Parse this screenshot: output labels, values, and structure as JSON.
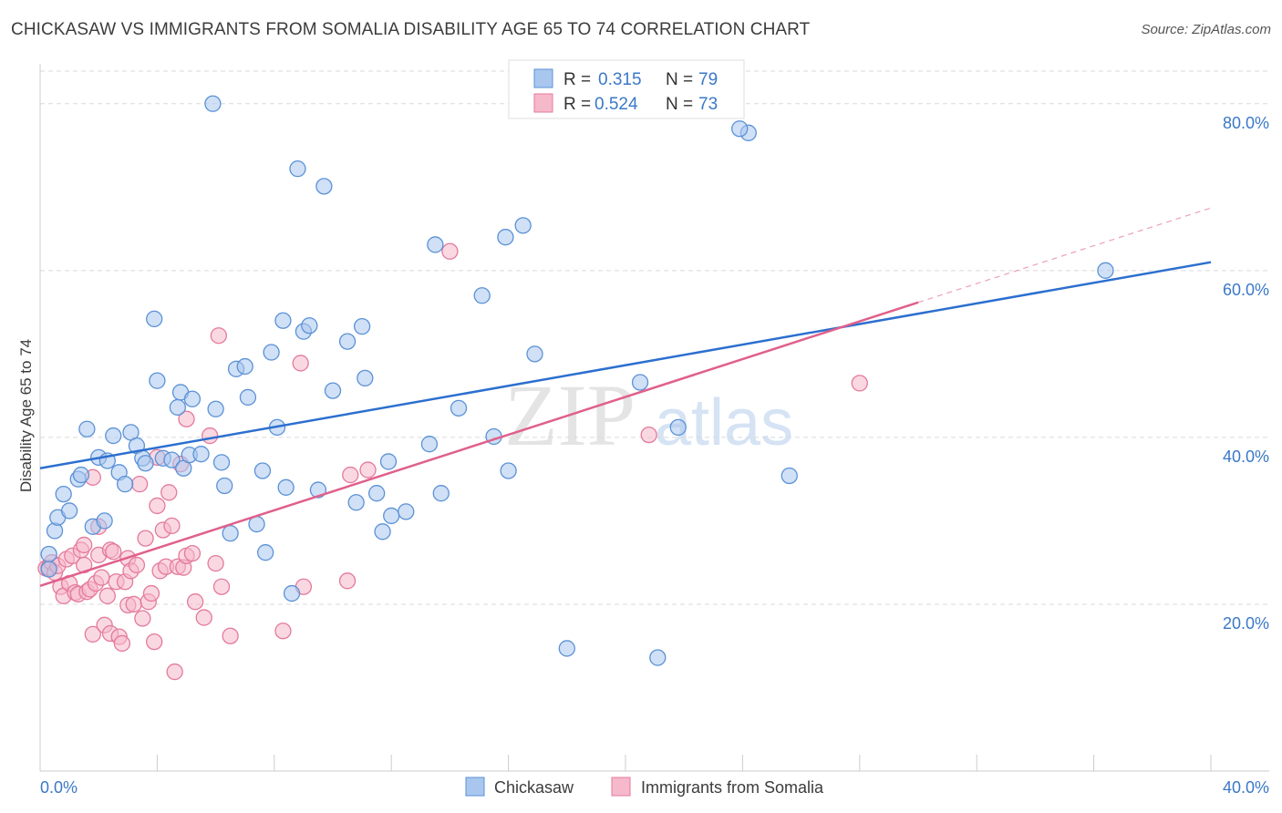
{
  "title": "CHICKASAW VS IMMIGRANTS FROM SOMALIA DISABILITY AGE 65 TO 74 CORRELATION CHART",
  "source": "Source: ZipAtlas.com",
  "watermark": {
    "zip": "ZIP",
    "atlas": "atlas"
  },
  "legend": {
    "r_label": "R =",
    "n_label": "N =",
    "rows": [
      {
        "r": "0.315",
        "n": "79"
      },
      {
        "r": "0.524",
        "n": "73"
      }
    ]
  },
  "colors": {
    "blue_fill": "#a9c7ee",
    "blue_stroke": "#5b92d6",
    "blue_line": "#2c6fcf",
    "pink_fill": "#f6b8cb",
    "pink_stroke": "#e47a9c",
    "pink_line": "#e0608b",
    "grid": "#d9d9d9",
    "value_text": "#3a78c8"
  },
  "chart_data": {
    "type": "scatter",
    "xlabel": "",
    "ylabel": "Disability Age 65 to 74",
    "xlim": [
      0,
      40
    ],
    "ylim": [
      0,
      85
    ],
    "x_tick_labels": [
      "0.0%",
      "40.0%"
    ],
    "y_ticks": [
      20,
      40,
      60,
      80
    ],
    "y_tick_labels": [
      "20.0%",
      "40.0%",
      "60.0%",
      "80.0%"
    ],
    "grid": true,
    "legend_position": "top-center",
    "series": [
      {
        "name": "Chickasaw",
        "trend": {
          "x0": 0,
          "y0": 36.3,
          "x1": 40,
          "y1": 61.0
        },
        "points": [
          [
            0.3,
            26.0
          ],
          [
            0.3,
            24.2
          ],
          [
            0.5,
            28.8
          ],
          [
            0.6,
            30.4
          ],
          [
            0.8,
            33.2
          ],
          [
            1.0,
            31.2
          ],
          [
            1.3,
            35.0
          ],
          [
            1.4,
            35.5
          ],
          [
            1.6,
            41.0
          ],
          [
            1.8,
            29.3
          ],
          [
            2.0,
            37.6
          ],
          [
            2.2,
            30.0
          ],
          [
            2.3,
            37.2
          ],
          [
            2.5,
            40.2
          ],
          [
            2.7,
            35.8
          ],
          [
            2.9,
            34.4
          ],
          [
            3.1,
            40.6
          ],
          [
            3.3,
            39.0
          ],
          [
            3.5,
            37.5
          ],
          [
            3.6,
            36.9
          ],
          [
            3.9,
            54.2
          ],
          [
            4.0,
            46.8
          ],
          [
            4.2,
            37.5
          ],
          [
            4.5,
            37.3
          ],
          [
            4.7,
            43.6
          ],
          [
            4.8,
            45.4
          ],
          [
            4.9,
            36.3
          ],
          [
            5.1,
            37.9
          ],
          [
            5.2,
            44.6
          ],
          [
            5.5,
            38.0
          ],
          [
            6.0,
            43.4
          ],
          [
            6.2,
            37.0
          ],
          [
            6.3,
            34.2
          ],
          [
            6.5,
            28.5
          ],
          [
            6.7,
            48.2
          ],
          [
            7.0,
            48.5
          ],
          [
            7.1,
            44.8
          ],
          [
            7.4,
            29.6
          ],
          [
            7.6,
            36.0
          ],
          [
            7.7,
            26.2
          ],
          [
            7.9,
            50.2
          ],
          [
            8.1,
            41.2
          ],
          [
            8.3,
            54.0
          ],
          [
            8.4,
            34.0
          ],
          [
            8.6,
            21.3
          ],
          [
            8.8,
            72.2
          ],
          [
            9.0,
            52.7
          ],
          [
            9.2,
            53.4
          ],
          [
            9.5,
            33.7
          ],
          [
            9.7,
            70.1
          ],
          [
            10.0,
            45.6
          ],
          [
            10.5,
            51.5
          ],
          [
            10.8,
            32.2
          ],
          [
            11.0,
            53.3
          ],
          [
            11.1,
            47.1
          ],
          [
            11.5,
            33.3
          ],
          [
            11.7,
            28.7
          ],
          [
            11.9,
            37.1
          ],
          [
            12.0,
            30.6
          ],
          [
            12.5,
            31.1
          ],
          [
            13.3,
            39.2
          ],
          [
            13.5,
            63.1
          ],
          [
            13.7,
            33.3
          ],
          [
            14.3,
            43.5
          ],
          [
            15.1,
            57.0
          ],
          [
            15.5,
            40.1
          ],
          [
            15.9,
            64.0
          ],
          [
            16.0,
            36.0
          ],
          [
            16.5,
            65.4
          ],
          [
            16.9,
            50.0
          ],
          [
            18.0,
            14.7
          ],
          [
            20.5,
            46.6
          ],
          [
            21.1,
            13.6
          ],
          [
            21.8,
            41.2
          ],
          [
            25.6,
            35.4
          ],
          [
            36.4,
            60.0
          ],
          [
            5.9,
            80.0
          ],
          [
            24.2,
            76.5
          ],
          [
            23.9,
            77.0
          ]
        ]
      },
      {
        "name": "Immigrants from Somalia",
        "trend": {
          "x0": 0,
          "y0": 22.2,
          "x1": 40,
          "y1": 67.5,
          "solid_until_x": 30.0
        },
        "points": [
          [
            0.2,
            24.3
          ],
          [
            0.3,
            24.4
          ],
          [
            0.4,
            25.0
          ],
          [
            0.5,
            23.8
          ],
          [
            0.6,
            24.6
          ],
          [
            0.7,
            22.1
          ],
          [
            0.8,
            21.0
          ],
          [
            0.9,
            25.4
          ],
          [
            1.0,
            22.5
          ],
          [
            1.1,
            25.8
          ],
          [
            1.2,
            21.4
          ],
          [
            1.3,
            21.2
          ],
          [
            1.4,
            26.5
          ],
          [
            1.5,
            27.1
          ],
          [
            1.5,
            24.7
          ],
          [
            1.6,
            21.5
          ],
          [
            1.7,
            21.8
          ],
          [
            1.8,
            16.4
          ],
          [
            1.8,
            35.2
          ],
          [
            1.9,
            22.5
          ],
          [
            2.0,
            25.9
          ],
          [
            2.0,
            29.3
          ],
          [
            2.1,
            23.2
          ],
          [
            2.2,
            17.5
          ],
          [
            2.3,
            21.0
          ],
          [
            2.4,
            16.5
          ],
          [
            2.4,
            26.5
          ],
          [
            2.5,
            26.3
          ],
          [
            2.6,
            22.7
          ],
          [
            2.7,
            16.1
          ],
          [
            2.8,
            15.3
          ],
          [
            2.9,
            22.7
          ],
          [
            3.0,
            19.9
          ],
          [
            3.0,
            25.5
          ],
          [
            3.1,
            24.0
          ],
          [
            3.2,
            20.0
          ],
          [
            3.3,
            24.7
          ],
          [
            3.4,
            34.4
          ],
          [
            3.5,
            18.3
          ],
          [
            3.6,
            27.9
          ],
          [
            3.7,
            20.3
          ],
          [
            3.8,
            21.3
          ],
          [
            3.9,
            15.5
          ],
          [
            4.0,
            31.8
          ],
          [
            4.0,
            37.6
          ],
          [
            4.1,
            24.0
          ],
          [
            4.2,
            28.9
          ],
          [
            4.3,
            24.5
          ],
          [
            4.4,
            33.4
          ],
          [
            4.5,
            29.4
          ],
          [
            4.6,
            11.9
          ],
          [
            4.7,
            24.5
          ],
          [
            4.8,
            36.8
          ],
          [
            4.9,
            24.4
          ],
          [
            5.0,
            42.2
          ],
          [
            5.0,
            25.8
          ],
          [
            5.2,
            26.1
          ],
          [
            5.3,
            20.3
          ],
          [
            5.6,
            18.4
          ],
          [
            5.8,
            40.2
          ],
          [
            6.0,
            24.9
          ],
          [
            6.1,
            52.2
          ],
          [
            6.2,
            22.1
          ],
          [
            6.5,
            16.2
          ],
          [
            8.3,
            16.8
          ],
          [
            8.9,
            48.9
          ],
          [
            9.0,
            22.1
          ],
          [
            10.5,
            22.8
          ],
          [
            10.6,
            35.5
          ],
          [
            11.2,
            36.1
          ],
          [
            14.0,
            62.3
          ],
          [
            20.8,
            40.3
          ],
          [
            28.0,
            46.5
          ]
        ]
      }
    ],
    "bottom_legend": [
      "Chickasaw",
      "Immigrants from Somalia"
    ]
  }
}
